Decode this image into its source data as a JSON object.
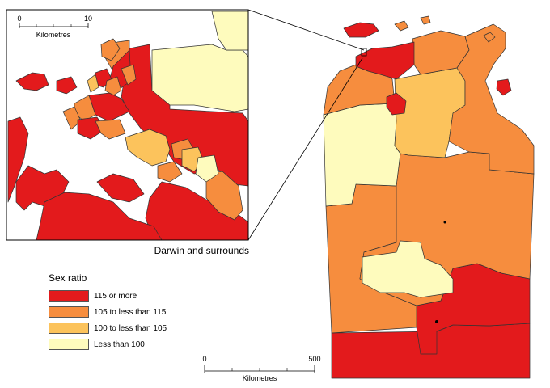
{
  "inset": {
    "caption": "Darwin and surrounds",
    "scale": {
      "start": "0",
      "end": "10",
      "unit": "Kilometres"
    }
  },
  "main_scale": {
    "start": "0",
    "end": "500",
    "unit": "Kilometres"
  },
  "legend": {
    "title": "Sex ratio",
    "items": [
      {
        "label": "115 or more",
        "color": "#e31a1c"
      },
      {
        "label": "105 to less than 115",
        "color": "#f68d3e"
      },
      {
        "label": "100 to less than 105",
        "color": "#fcc35c"
      },
      {
        "label": "Less than 100",
        "color": "#fefbbd"
      }
    ]
  },
  "colors": {
    "c115": "#e31a1c",
    "c105": "#f68d3e",
    "c100": "#fcc35c",
    "clt100": "#fefbbd"
  }
}
